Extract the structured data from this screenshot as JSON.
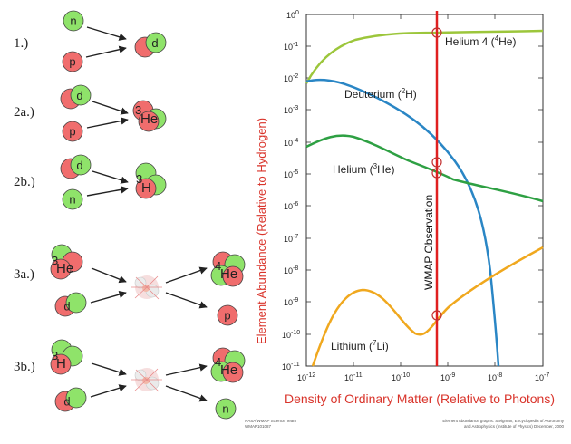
{
  "reactions": {
    "r1": {
      "label": "1.)",
      "in1": "n",
      "in2": "p",
      "out": "d"
    },
    "r2a": {
      "label": "2a.)",
      "in1": "d",
      "in2": "p",
      "out_sup": "3",
      "out": "He"
    },
    "r2b": {
      "label": "2b.)",
      "in1": "d",
      "in2": "n",
      "out_sup": "3",
      "out": "H"
    },
    "r3a": {
      "label": "3a.)",
      "in1_sup": "3",
      "in1": "He",
      "in2": "d",
      "out1_sup": "4",
      "out1": "He",
      "out2": "p"
    },
    "r3b": {
      "label": "3b.)",
      "in1_sup": "3",
      "in1": "H",
      "in2": "d",
      "out1_sup": "4",
      "out1": "He",
      "out2": "n"
    }
  },
  "chart": {
    "x_ticks": [
      {
        "base": "10",
        "exp": "-12"
      },
      {
        "base": "10",
        "exp": "-11"
      },
      {
        "base": "10",
        "exp": "-10"
      },
      {
        "base": "10",
        "exp": "-9"
      },
      {
        "base": "10",
        "exp": "-8"
      },
      {
        "base": "10",
        "exp": "-7"
      }
    ],
    "y_ticks": [
      {
        "base": "10",
        "exp": "0"
      },
      {
        "base": "10",
        "exp": "-1"
      },
      {
        "base": "10",
        "exp": "-2"
      },
      {
        "base": "10",
        "exp": "-3"
      },
      {
        "base": "10",
        "exp": "-4"
      },
      {
        "base": "10",
        "exp": "-5"
      },
      {
        "base": "10",
        "exp": "-6"
      },
      {
        "base": "10",
        "exp": "-7"
      },
      {
        "base": "10",
        "exp": "-8"
      },
      {
        "base": "10",
        "exp": "-9"
      },
      {
        "base": "10",
        "exp": "-10"
      },
      {
        "base": "10",
        "exp": "-11"
      }
    ],
    "curves": {
      "he4": {
        "name": "Helium 4 (",
        "sup": "4",
        "tail": "He)",
        "color": "#9cc63b"
      },
      "deut": {
        "name": "Deuterium (",
        "sup": "2",
        "tail": "H)",
        "color": "#2a86c5"
      },
      "he3": {
        "name": "Helium (",
        "sup": "3",
        "tail": "He)",
        "color": "#2ea043"
      },
      "li7": {
        "name": "Lithium (",
        "sup": "7",
        "tail": "Li)",
        "color": "#f0a81e"
      }
    },
    "wmap_label": "WMAP Observation",
    "x_axis_title": "Density of Ordinary Matter (Relative to Photons)",
    "y_axis_title": "Element Abundance (Relative to Hydrogen)"
  },
  "credits": {
    "left_1": "NASA/WMAP Science Team",
    "left_2": "WMAP101087",
    "right_1": "Element Abundance graphs: Steigman, Encyclopedia of Astronomy",
    "right_2": "and Astrophysics (Institute of Physics) December, 2000"
  },
  "colors": {
    "neutron": "#8fe36a",
    "proton": "#f06d6d",
    "axis_text": "#d9342b",
    "wmap_line": "#e02020"
  }
}
